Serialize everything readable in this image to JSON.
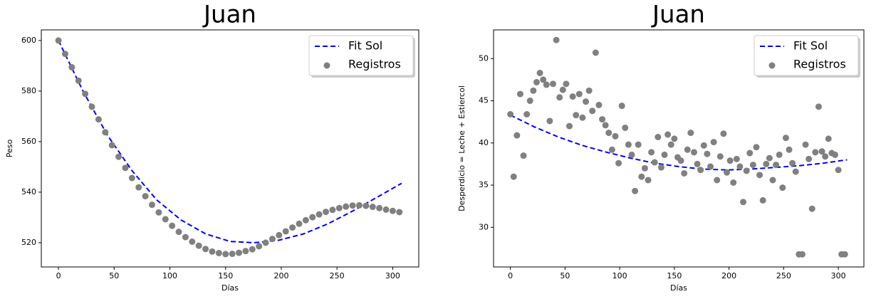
{
  "chart_data": [
    {
      "type": "scatter",
      "title": "Juan",
      "x_label": "Días",
      "y_label": "Peso",
      "xlim": [
        -15.4,
        323.4
      ],
      "ylim": [
        510.4,
        604.2
      ],
      "xticks": [
        0,
        50,
        100,
        150,
        200,
        250,
        300
      ],
      "yticks": [
        520,
        540,
        560,
        580,
        600
      ],
      "legend": "upper right",
      "series": [
        {
          "name": "Fit Sol",
          "type": "line",
          "color": "#0000ff",
          "x": [
            0,
            22,
            44,
            66,
            88,
            110,
            132,
            154,
            176,
            198,
            220,
            242,
            264,
            286,
            308
          ],
          "values": [
            600,
            580,
            562.5,
            548.5,
            537,
            529,
            523.5,
            520.5,
            520,
            521,
            523.5,
            527.5,
            532.5,
            538,
            543.5
          ]
        },
        {
          "name": "Registros",
          "type": "scatter",
          "color": "#808080",
          "x": [
            0,
            6,
            12,
            18,
            24,
            30,
            36,
            42,
            48,
            54,
            60,
            66,
            72,
            78,
            84,
            90,
            96,
            102,
            108,
            114,
            120,
            126,
            132,
            138,
            144,
            150,
            156,
            162,
            168,
            174,
            180,
            186,
            192,
            198,
            204,
            210,
            216,
            222,
            228,
            234,
            240,
            246,
            252,
            258,
            264,
            270,
            276,
            282,
            288,
            294,
            300,
            306
          ],
          "values": [
            600,
            594.7,
            589.4,
            584.1,
            578.9,
            573.8,
            568.8,
            563.7,
            558.6,
            554,
            549.6,
            545.6,
            541.9,
            538.4,
            535,
            532,
            529.3,
            526.7,
            524.3,
            522.2,
            520.4,
            518.8,
            517.5,
            516.5,
            515.9,
            515.5,
            515.6,
            516,
            516.7,
            517.4,
            518.6,
            520,
            521.5,
            523,
            524.5,
            526,
            527.5,
            528.9,
            530.1,
            531.2,
            532.2,
            533,
            533.7,
            534.3,
            534.7,
            534.8,
            534.6,
            534.2,
            533.7,
            533.1,
            532.6,
            532.1
          ]
        }
      ]
    },
    {
      "type": "scatter",
      "title": "Juan",
      "x_label": "Días",
      "y_label": "Desperdicio = Leche + Estiercol",
      "xlim": [
        -15.4,
        323.4
      ],
      "ylim": [
        25.3,
        53.4
      ],
      "xticks": [
        0,
        50,
        100,
        150,
        200,
        250,
        300
      ],
      "yticks": [
        30,
        35,
        40,
        45,
        50
      ],
      "legend": "upper right",
      "series": [
        {
          "name": "Fit Sol",
          "type": "line",
          "color": "#0000ff",
          "x": [
            0,
            22,
            44,
            66,
            88,
            110,
            132,
            154,
            176,
            198,
            220,
            242,
            264,
            286,
            308
          ],
          "values": [
            43.3,
            41.9,
            40.7,
            39.7,
            38.9,
            38.2,
            37.6,
            37.2,
            36.9,
            36.8,
            36.9,
            37.1,
            37.3,
            37.6,
            38
          ]
        },
        {
          "name": "Registros",
          "type": "scatter",
          "color": "#808080",
          "x": [
            0,
            3,
            6,
            9,
            12,
            15,
            18,
            21,
            24,
            27,
            30,
            33,
            36,
            39,
            42,
            45,
            48,
            51,
            54,
            57,
            60,
            63,
            66,
            69,
            72,
            75,
            78,
            81,
            84,
            87,
            90,
            93,
            96,
            99,
            102,
            105,
            108,
            111,
            114,
            117,
            120,
            123,
            126,
            129,
            132,
            135,
            138,
            141,
            144,
            147,
            150,
            153,
            156,
            159,
            162,
            165,
            168,
            171,
            174,
            177,
            180,
            183,
            186,
            189,
            192,
            195,
            198,
            201,
            204,
            207,
            210,
            213,
            216,
            219,
            222,
            225,
            228,
            231,
            234,
            237,
            240,
            243,
            246,
            249,
            252,
            255,
            258,
            261,
            264,
            267,
            270,
            273,
            276,
            279,
            282,
            285,
            288,
            291,
            294,
            297,
            300,
            303,
            306
          ],
          "values": [
            43.4,
            36,
            40.9,
            45.8,
            38.5,
            43.4,
            45,
            46.2,
            47.2,
            48.3,
            47.5,
            46.9,
            42.6,
            47,
            52.2,
            45.4,
            46.3,
            47,
            42,
            45.5,
            43.3,
            45.8,
            43,
            44.9,
            46.2,
            43.8,
            50.7,
            44.5,
            42.8,
            42.1,
            41.2,
            39.2,
            40.8,
            37.6,
            44.4,
            41.8,
            39.8,
            38.6,
            34.3,
            39.8,
            36,
            37,
            35.6,
            38.9,
            37.7,
            40.7,
            37.1,
            38.6,
            41,
            39.8,
            40.5,
            38.3,
            37.9,
            36.4,
            39.2,
            41.2,
            38.9,
            37.5,
            36.8,
            39.7,
            38.7,
            37.2,
            40.1,
            35.6,
            38.4,
            41.1,
            36.5,
            37.9,
            35.3,
            38.1,
            37.2,
            33,
            36.7,
            38.8,
            37.4,
            39.5,
            36.2,
            33.2,
            37.5,
            38.2,
            35.6,
            37.4,
            38.6,
            34.7,
            40.6,
            39.2,
            37.6,
            36.6,
            26.8,
            26.8,
            39.8,
            38.1,
            32.2,
            38.9,
            44.3,
            39,
            38.4,
            40.5,
            38.8,
            38.6,
            36.8,
            26.8,
            26.8
          ]
        }
      ]
    }
  ]
}
